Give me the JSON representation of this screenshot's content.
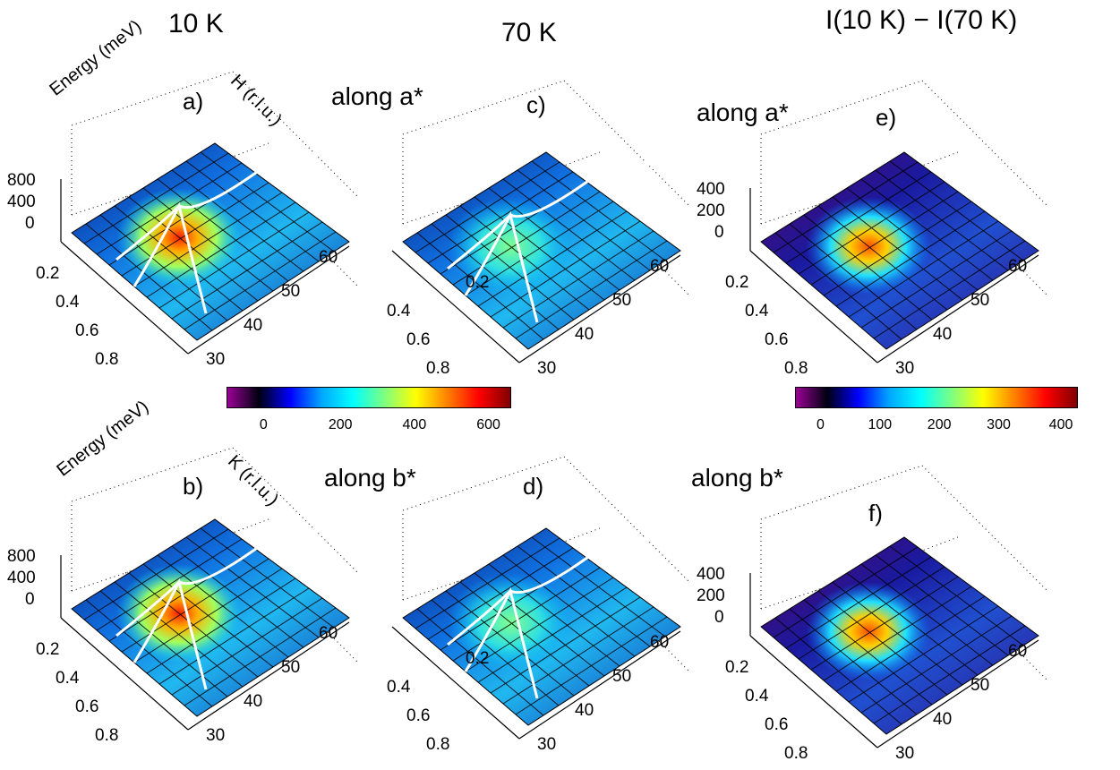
{
  "columns": {
    "col1": "10 K",
    "col2": "70 K",
    "col3": "I(10 K) − I(70 K)"
  },
  "row_labels": {
    "row1": "along a*",
    "row2": "along b*"
  },
  "axis_labels": {
    "energy": "Energy (meV)",
    "h": "H (r.l.u.)",
    "k": "K (r.l.u.)"
  },
  "colorbars": [
    {
      "ticks": [
        "0",
        "200",
        "400",
        "600"
      ],
      "range": [
        -60,
        700
      ],
      "colormap": [
        "#9b0096",
        "#000010",
        "#0000ff",
        "#00a8ff",
        "#00ffff",
        "#7fff7f",
        "#ffff00",
        "#ff8000",
        "#ff0000",
        "#800000"
      ]
    },
    {
      "ticks": [
        "0",
        "100",
        "200",
        "300",
        "400"
      ],
      "range": [
        -30,
        400
      ],
      "colormap": [
        "#9b0096",
        "#000010",
        "#0000ff",
        "#00a8ff",
        "#00ffff",
        "#7fff7f",
        "#ffff00",
        "#ff8000",
        "#ff0000",
        "#800000"
      ]
    }
  ],
  "chart_data": [
    {
      "panel": "a)",
      "type": "surface",
      "temperature": "10 K",
      "direction": "along a*",
      "z_ticks": [
        "800",
        "400",
        "0"
      ],
      "q_ticks": [
        "0.2",
        "0.4",
        "0.6",
        "0.8"
      ],
      "e_ticks": [
        "30",
        "40",
        "50",
        "60"
      ],
      "peak_intensity": 650,
      "dispersion_lines": true
    },
    {
      "panel": "b)",
      "type": "surface",
      "temperature": "10 K",
      "direction": "along b*",
      "z_ticks": [
        "800",
        "400",
        "0"
      ],
      "q_ticks": [
        "0.2",
        "0.4",
        "0.6",
        "0.8"
      ],
      "e_ticks": [
        "30",
        "40",
        "50",
        "60"
      ],
      "peak_intensity": 650,
      "dispersion_lines": true
    },
    {
      "panel": "c)",
      "type": "surface",
      "temperature": "70 K",
      "direction": "along a*",
      "z_ticks": [],
      "q_ticks": [
        "0.2",
        "0.4",
        "0.6",
        "0.8"
      ],
      "e_ticks": [
        "30",
        "40",
        "50",
        "60"
      ],
      "peak_intensity": 300,
      "dispersion_lines": true
    },
    {
      "panel": "d)",
      "type": "surface",
      "temperature": "70 K",
      "direction": "along b*",
      "z_ticks": [],
      "q_ticks": [
        "0.2",
        "0.4",
        "0.6",
        "0.8"
      ],
      "e_ticks": [
        "30",
        "40",
        "50",
        "60"
      ],
      "peak_intensity": 300,
      "dispersion_lines": true
    },
    {
      "panel": "e)",
      "type": "surface",
      "temperature": "I(10 K) − I(70 K)",
      "direction": "along a*",
      "z_ticks": [
        "400",
        "200",
        "0"
      ],
      "q_ticks": [
        "0.2",
        "0.4",
        "0.6",
        "0.8"
      ],
      "e_ticks": [
        "30",
        "40",
        "50",
        "60"
      ],
      "peak_intensity": 330,
      "dispersion_lines": false
    },
    {
      "panel": "f)",
      "type": "surface",
      "temperature": "I(10 K) − I(70 K)",
      "direction": "along b*",
      "z_ticks": [
        "400",
        "200",
        "0"
      ],
      "q_ticks": [
        "0.2",
        "0.4",
        "0.6",
        "0.8"
      ],
      "e_ticks": [
        "30",
        "40",
        "50",
        "60"
      ],
      "peak_intensity": 330,
      "dispersion_lines": false
    }
  ]
}
